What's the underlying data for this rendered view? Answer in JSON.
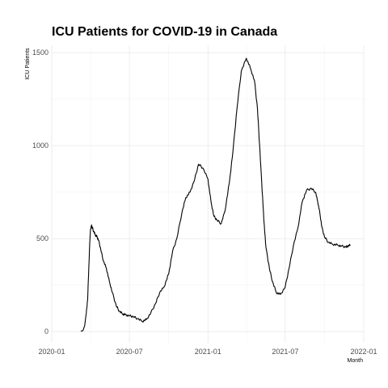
{
  "chart_data": {
    "type": "line",
    "title": "ICU Patients for COVID-19 in Canada",
    "xlabel": "Month",
    "ylabel": "ICU Patients",
    "x_ticks": [
      "2020-01",
      "2020-07",
      "2021-01",
      "2021-07",
      "2022-01"
    ],
    "y_ticks": [
      0,
      500,
      1000,
      1500
    ],
    "xlim": [
      "2020-01-01",
      "2022-01-01"
    ],
    "ylim": [
      -60,
      1540
    ],
    "grid": true,
    "legend": "none",
    "series": [
      {
        "x": [
          "2020-03-09",
          "2020-03-14",
          "2020-03-18",
          "2020-03-22",
          "2020-03-25",
          "2020-03-28",
          "2020-03-30",
          "2020-04-01",
          "2020-04-03",
          "2020-04-05",
          "2020-04-08",
          "2020-04-12",
          "2020-04-16",
          "2020-04-20",
          "2020-04-25",
          "2020-05-01",
          "2020-05-08",
          "2020-05-15",
          "2020-05-22",
          "2020-05-31",
          "2020-06-07",
          "2020-06-15",
          "2020-06-22",
          "2020-07-01",
          "2020-07-10",
          "2020-07-20",
          "2020-07-31",
          "2020-08-10",
          "2020-08-20",
          "2020-08-31",
          "2020-09-10",
          "2020-09-20",
          "2020-10-01",
          "2020-10-10",
          "2020-10-20",
          "2020-11-01",
          "2020-11-10",
          "2020-11-20",
          "2020-12-01",
          "2020-12-10",
          "2020-12-20",
          "2021-01-01",
          "2021-01-08",
          "2021-01-15",
          "2021-01-22",
          "2021-02-01",
          "2021-02-10",
          "2021-02-20",
          "2021-03-01",
          "2021-03-10",
          "2021-03-20",
          "2021-04-01",
          "2021-04-10",
          "2021-04-20",
          "2021-04-27",
          "2021-05-02",
          "2021-05-07",
          "2021-05-12",
          "2021-05-17",
          "2021-05-25",
          "2021-06-01",
          "2021-06-10",
          "2021-06-20",
          "2021-07-01",
          "2021-07-10",
          "2021-07-20",
          "2021-07-31",
          "2021-08-10",
          "2021-08-20",
          "2021-08-31",
          "2021-09-10",
          "2021-09-15",
          "2021-09-20",
          "2021-09-25",
          "2021-10-01",
          "2021-10-10",
          "2021-10-20",
          "2021-11-01",
          "2021-11-10",
          "2021-11-20",
          "2021-11-25",
          "2021-12-01"
        ],
        "y": [
          2,
          5,
          30,
          100,
          170,
          350,
          480,
          550,
          570,
          560,
          540,
          520,
          510,
          490,
          440,
          380,
          340,
          270,
          210,
          140,
          110,
          95,
          90,
          85,
          80,
          70,
          55,
          65,
          100,
          150,
          210,
          240,
          310,
          430,
          500,
          640,
          720,
          750,
          820,
          900,
          880,
          820,
          700,
          620,
          600,
          580,
          650,
          800,
          980,
          1200,
          1400,
          1470,
          1420,
          1350,
          1200,
          1000,
          800,
          600,
          450,
          340,
          270,
          210,
          200,
          240,
          340,
          460,
          560,
          700,
          760,
          770,
          750,
          700,
          640,
          560,
          510,
          480,
          470,
          465,
          460,
          455,
          460,
          465
        ]
      }
    ]
  }
}
